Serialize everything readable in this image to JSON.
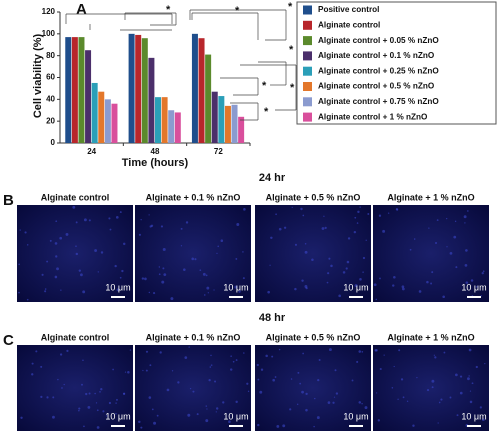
{
  "chart_data": {
    "type": "bar",
    "panel_label": "A",
    "ylabel": "Cell viability (%)",
    "xlabel": "Time (hours)",
    "categories": [
      "24",
      "48",
      "72"
    ],
    "ylim": [
      0,
      120
    ],
    "yticks": [
      0,
      20,
      40,
      60,
      80,
      100,
      120
    ],
    "annotations": [
      "*",
      "*",
      "*",
      "*",
      "*",
      "*",
      "*"
    ],
    "series": [
      {
        "name": "Positive control",
        "color": "#1f4e8c",
        "values": [
          97,
          100,
          100
        ]
      },
      {
        "name": "Alginate control",
        "color": "#b8262b",
        "values": [
          97,
          99,
          96
        ]
      },
      {
        "name": "Alginate control + 0.05 % nZnO",
        "color": "#5b8a2c",
        "values": [
          97,
          96,
          81
        ]
      },
      {
        "name": "Alginate control + 0.1 % nZnO",
        "color": "#4b2f6b",
        "values": [
          85,
          78,
          47
        ]
      },
      {
        "name": "Alginate control + 0.25 % nZnO",
        "color": "#2b9fb8",
        "values": [
          55,
          42,
          43
        ]
      },
      {
        "name": "Alginate control + 0.5 % nZnO",
        "color": "#e3772b",
        "values": [
          47,
          42,
          34
        ]
      },
      {
        "name": "Alginate control + 0.75 % nZnO",
        "color": "#8b9bcf",
        "values": [
          40,
          30,
          35
        ]
      },
      {
        "name": "Alginate control + 1 % nZnO",
        "color": "#d94f9c",
        "values": [
          36,
          28,
          24
        ]
      }
    ]
  },
  "panels": [
    {
      "label": "B",
      "title": "24 hr",
      "images": [
        {
          "caption": "Alginate control",
          "scale": "10 μm"
        },
        {
          "caption": "Alginate + 0.1 % nZnO",
          "scale": "10 μm"
        },
        {
          "caption": "Alginate + 0.5 % nZnO",
          "scale": "10 μm"
        },
        {
          "caption": "Alginate + 1 % nZnO",
          "scale": "10 μm"
        }
      ]
    },
    {
      "label": "C",
      "title": "48 hr",
      "images": [
        {
          "caption": "Alginate control",
          "scale": "10 μm"
        },
        {
          "caption": "Alginate + 0.1 % nZnO",
          "scale": "10 μm"
        },
        {
          "caption": "Alginate + 0.5 % nZnO",
          "scale": "10 μm"
        },
        {
          "caption": "Alginate + 1 % nZnO",
          "scale": "10 μm"
        }
      ]
    }
  ]
}
